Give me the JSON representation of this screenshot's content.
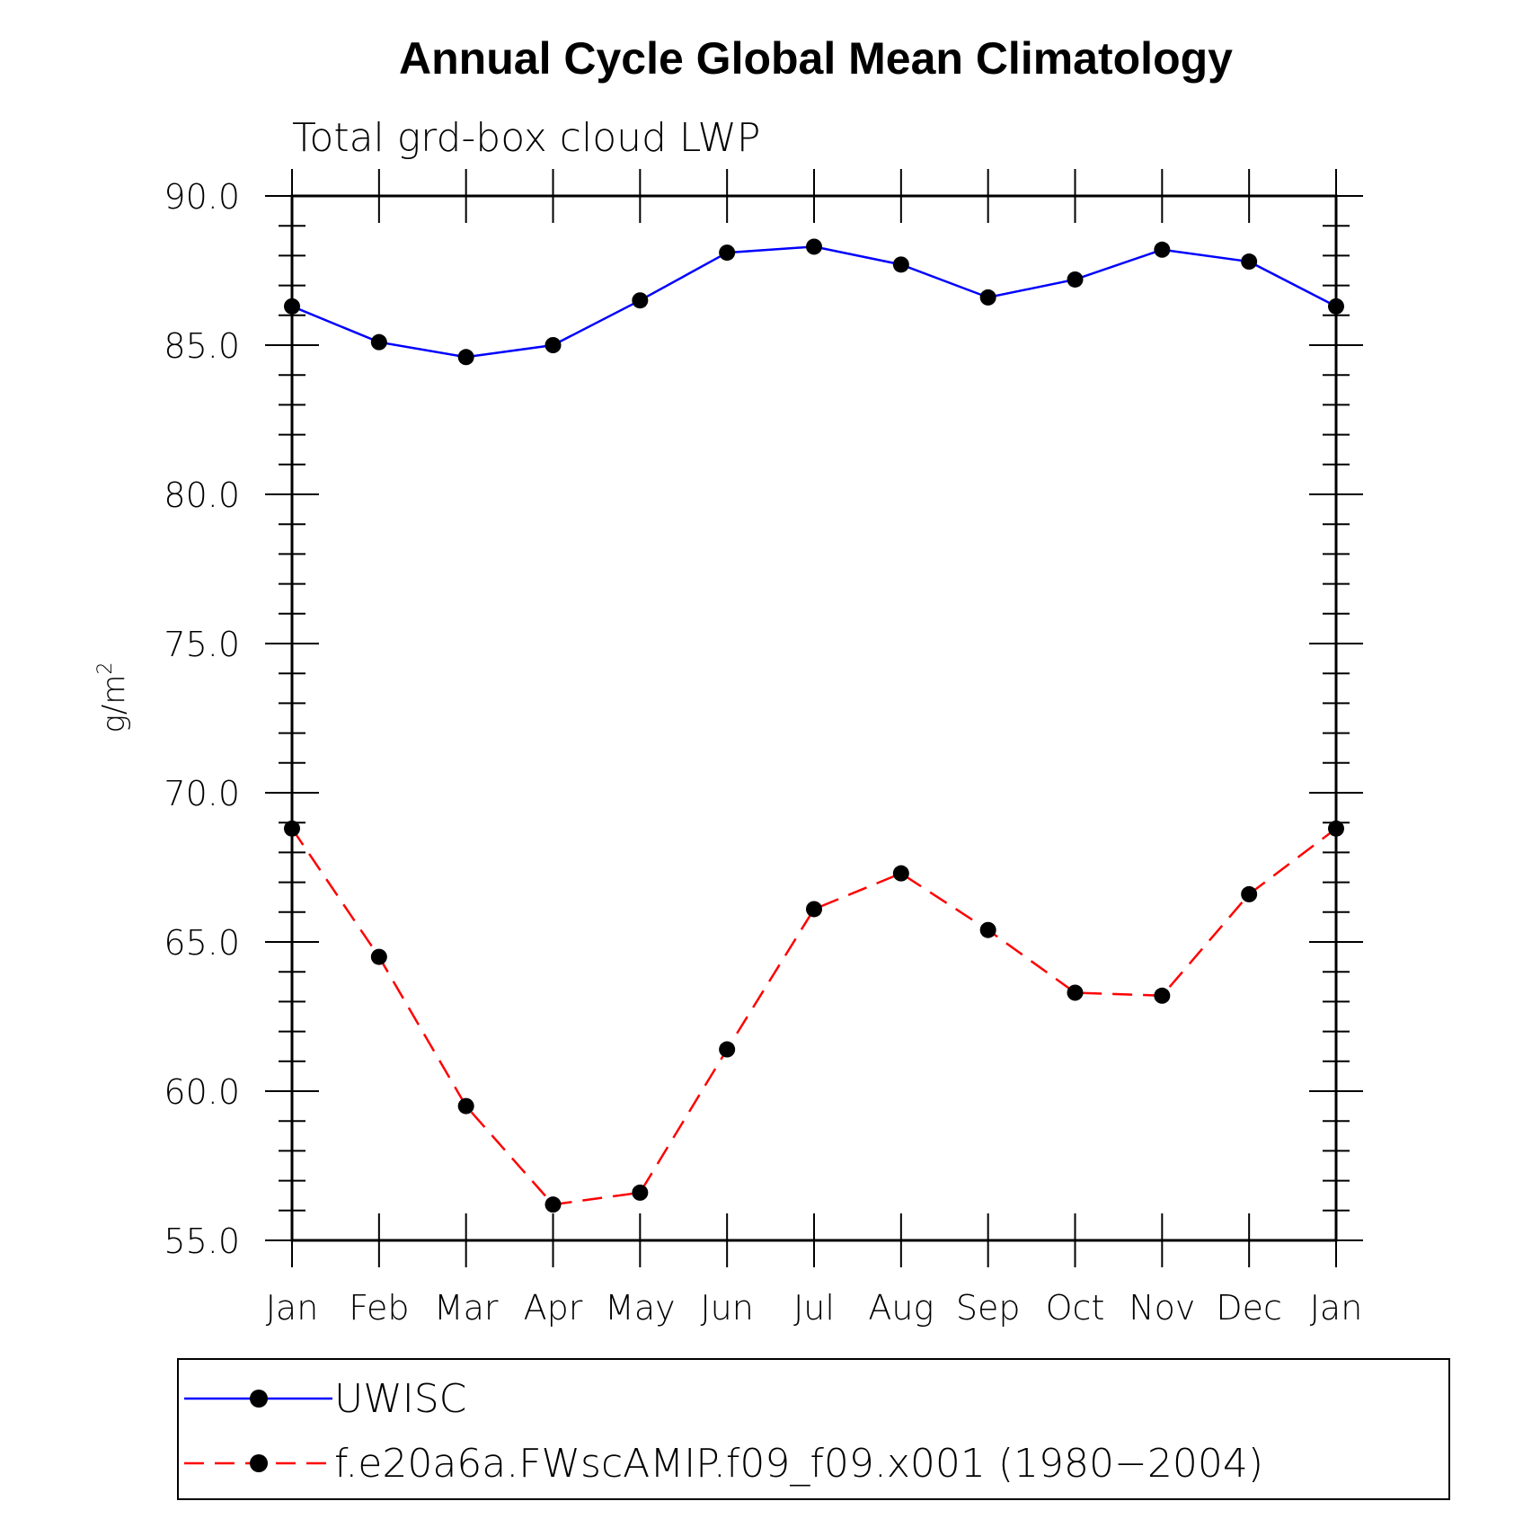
{
  "chart_data": {
    "type": "line",
    "title": "Annual Cycle Global Mean Climatology",
    "subtitle": "Total grd-box cloud LWP",
    "ylabel": "g/m",
    "ylabel_superscript": "2",
    "xlabel": "",
    "categories": [
      "Jan",
      "Feb",
      "Mar",
      "Apr",
      "May",
      "Jun",
      "Jul",
      "Aug",
      "Sep",
      "Oct",
      "Nov",
      "Dec",
      "Jan"
    ],
    "ylim": [
      55.0,
      90.0
    ],
    "yticks": [
      "55.0",
      "60.0",
      "65.0",
      "70.0",
      "75.0",
      "80.0",
      "85.0",
      "90.0"
    ],
    "grid": false,
    "legend_placement": "bottom",
    "series": [
      {
        "name": "UWISC",
        "color": "#0000ff",
        "line_style": "solid",
        "marker": "filled-circle",
        "values": [
          86.3,
          85.1,
          84.6,
          85.0,
          86.5,
          88.1,
          88.3,
          87.7,
          86.6,
          87.2,
          88.2,
          87.8,
          86.3
        ]
      },
      {
        "name": "f.e20a6a.FWscAMIP.f09_f09.x001 (1980−2004)",
        "color": "#ff0000",
        "line_style": "dashed",
        "marker": "filled-circle",
        "values": [
          68.8,
          64.5,
          59.5,
          56.2,
          56.6,
          61.4,
          66.1,
          67.3,
          65.4,
          63.3,
          63.2,
          66.6,
          68.8
        ]
      }
    ]
  }
}
